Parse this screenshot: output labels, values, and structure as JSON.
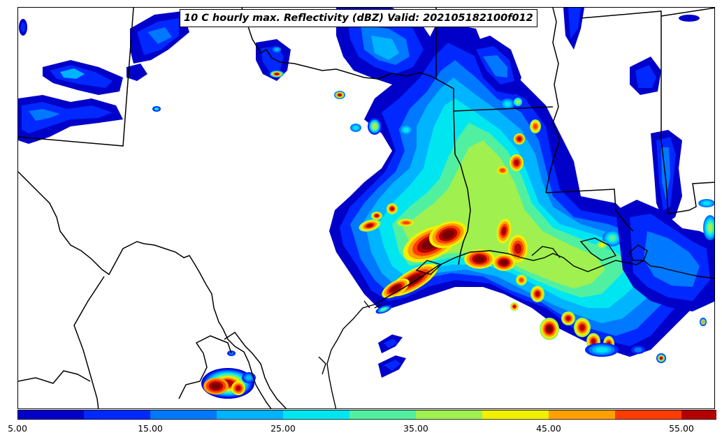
{
  "title": "10 C hourly max. Reflectivity (dBZ) Valid: 202105182100f012",
  "colorbar": {
    "levels": [
      5,
      10,
      15,
      20,
      25,
      30,
      35,
      40,
      45,
      50,
      55
    ],
    "colors": [
      "#0000c8",
      "#0028ff",
      "#0078ff",
      "#00b4ff",
      "#00e6f0",
      "#50f0a0",
      "#a0f050",
      "#f0f000",
      "#ffa000",
      "#ff3c00",
      "#b40000"
    ],
    "extend_color": "#780000",
    "tick_labels": [
      "5.00",
      "15.00",
      "25.00",
      "35.00",
      "45.00",
      "55.00"
    ]
  },
  "map": {
    "region": "Texas, Louisiana, Gulf of Mexico",
    "boundary_color": "#000000",
    "background": "#ffffff"
  }
}
